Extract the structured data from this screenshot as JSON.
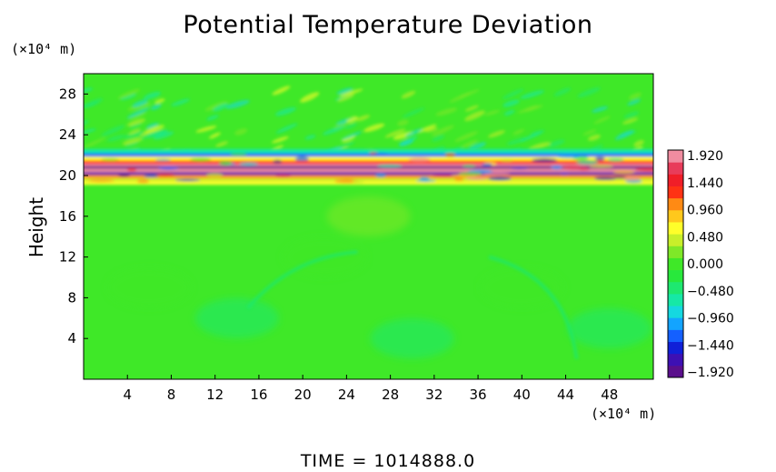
{
  "chart_data": {
    "type": "heatmap",
    "title": "Potential Temperature Deviation",
    "ylabel": "Height",
    "xlabel": "",
    "x_unit": "(×10⁴ m)",
    "y_unit": "(×10⁴ m)",
    "footer": "TIME = 1014888.0",
    "xlim": [
      0,
      52
    ],
    "ylim": [
      0,
      30
    ],
    "x_ticks": [
      "4",
      "8",
      "12",
      "16",
      "20",
      "24",
      "28",
      "32",
      "36",
      "40",
      "44",
      "48"
    ],
    "y_ticks": [
      "4",
      "8",
      "12",
      "16",
      "20",
      "24",
      "28"
    ],
    "colorbar": {
      "range": [
        -1.92,
        1.92
      ],
      "tick_labels": [
        "1.920",
        "1.440",
        "0.960",
        "0.480",
        "0.000",
        "−0.480",
        "−0.960",
        "−1.440",
        "−1.920"
      ],
      "colors": [
        "#5a0f8c",
        "#3d10b4",
        "#1020d8",
        "#1460ff",
        "#13a4ff",
        "#15d8e0",
        "#16e8a6",
        "#1ee870",
        "#28e83c",
        "#3fe828",
        "#7fe828",
        "#c8ef2a",
        "#fffe2a",
        "#ffc81c",
        "#ff8a14",
        "#ff3214",
        "#f01e28",
        "#e83c5a",
        "#f08ca0"
      ]
    },
    "background_value": 0.0,
    "features": [
      {
        "name": "strong oscillation band",
        "y_range": [
          19,
          22
        ],
        "x_range": [
          0,
          52
        ]
      },
      {
        "name": "wave field above band",
        "y_range": [
          22,
          28
        ],
        "x_range": [
          0,
          52
        ]
      }
    ]
  }
}
